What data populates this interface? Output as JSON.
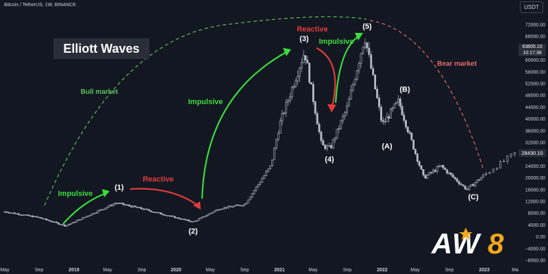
{
  "header": {
    "symbol": "Bitcoin / TetherUS, 1W, BINANCE",
    "quote_button": "USDT"
  },
  "title": "Elliott Waves",
  "price_tag": {
    "price": "63805.10",
    "countdown": "10:17:38"
  },
  "last_price_tag": "28430.10",
  "logo_text": "AW8",
  "colors": {
    "background": "#131722",
    "candle": "#b7bec8",
    "impulsive": "#3cdc3c",
    "reactive": "#e23b3b",
    "bull_market": "#5cc15c",
    "bear_market": "#e36b6b",
    "text": "#ffffff",
    "axis_text": "#d1d4dc"
  },
  "chart_data": {
    "type": "candlestick",
    "x_axis_ticks": [
      "May",
      "Sep",
      "2019",
      "May",
      "Sep",
      "2020",
      "May",
      "Sep",
      "2021",
      "May",
      "Sep",
      "2022",
      "May",
      "Sep",
      "2023",
      "Ma"
    ],
    "y_axis_ticks": [
      "72000.00",
      "68000.00",
      "64000.00",
      "60000.00",
      "56000.00",
      "52000.00",
      "48000.00",
      "44000.00",
      "40000.00",
      "36000.00",
      "32000.00",
      "28000.00",
      "24000.00",
      "20000.00",
      "16000.00",
      "12000.00",
      "8000.00",
      "4000.00",
      "0.00",
      "−4000.00",
      "−8000.00"
    ],
    "ylim": [
      -9000,
      75000
    ],
    "price_path": [
      [
        "2018-05",
        8500
      ],
      [
        "2018-09",
        6500
      ],
      [
        "2018-12",
        3700
      ],
      [
        "2019-06",
        11500
      ],
      [
        "2019-09",
        9500
      ],
      [
        "2019-12",
        7200
      ],
      [
        "2020-03",
        5000
      ],
      [
        "2020-06",
        9500
      ],
      [
        "2020-09",
        11000
      ],
      [
        "2020-12",
        24000
      ],
      [
        "2021-01",
        38000
      ],
      [
        "2021-04",
        63000
      ],
      [
        "2021-06",
        31000
      ],
      [
        "2021-07",
        30000
      ],
      [
        "2021-09",
        44000
      ],
      [
        "2021-11",
        68000
      ],
      [
        "2022-01",
        38000
      ],
      [
        "2022-03",
        46000
      ],
      [
        "2022-06",
        20000
      ],
      [
        "2022-08",
        24000
      ],
      [
        "2022-11",
        16000
      ],
      [
        "2023-01",
        21000
      ],
      [
        "2023-03",
        28400
      ]
    ],
    "wave_labels": [
      "(1)",
      "(2)",
      "(3)",
      "(4)",
      "(5)",
      "(A)",
      "(B)",
      "(C)"
    ],
    "annotations": {
      "impulsive": "Impulsive",
      "reactive": "Reactive",
      "bull_market": "Bull market",
      "bear_market": "Bear market"
    }
  }
}
